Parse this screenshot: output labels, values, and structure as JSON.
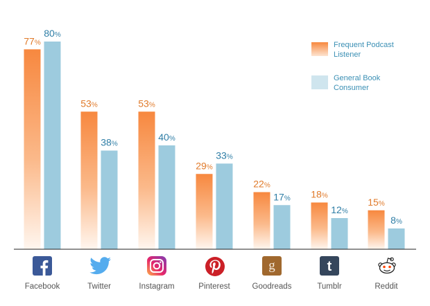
{
  "chart_data": {
    "type": "bar",
    "categories": [
      "Facebook",
      "Twitter",
      "Instagram",
      "Pinterest",
      "Goodreads",
      "Tumblr",
      "Reddit"
    ],
    "series": [
      {
        "name": "Frequent Podcast Listener",
        "values": [
          77,
          53,
          53,
          29,
          22,
          18,
          15
        ],
        "color": "#f7883f"
      },
      {
        "name": "General Book Consumer",
        "values": [
          80,
          38,
          40,
          33,
          17,
          12,
          8
        ],
        "color": "#9dcbde"
      }
    ],
    "value_suffix": "%",
    "ylim": [
      0,
      80
    ],
    "grid": false,
    "legend_position": "top-right",
    "title": "",
    "xlabel": "",
    "ylabel": ""
  },
  "legend": {
    "items": [
      {
        "label_line1": "Frequent Podcast",
        "label_line2": "Listener"
      },
      {
        "label_line1": "General Book",
        "label_line2": "Consumer"
      }
    ]
  },
  "icons": [
    {
      "name": "facebook-icon",
      "glyph": "f",
      "color": "#3b5998"
    },
    {
      "name": "twitter-icon",
      "glyph": "bird",
      "color": "#55acee"
    },
    {
      "name": "instagram-icon",
      "glyph": "camera",
      "color": "#c13584"
    },
    {
      "name": "pinterest-icon",
      "glyph": "p",
      "color": "#cb2027"
    },
    {
      "name": "goodreads-icon",
      "glyph": "g",
      "color": "#a0682e"
    },
    {
      "name": "tumblr-icon",
      "glyph": "t",
      "color": "#35465c"
    },
    {
      "name": "reddit-icon",
      "glyph": "alien",
      "color": "#ff4500"
    }
  ],
  "colors": {
    "orange_text": "#e07a2a",
    "blue_text": "#2f7ea6",
    "axis": "#222222"
  }
}
